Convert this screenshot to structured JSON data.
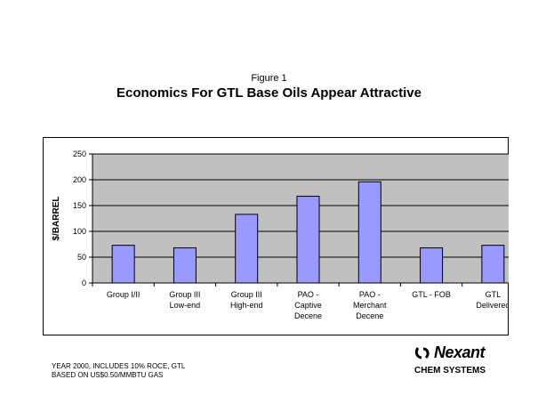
{
  "figure_label": "Figure 1",
  "title": "Economics For GTL Base Oils Appear Attractive",
  "footnote": [
    "YEAR 2000, INCLUDES 10% ROCE, GTL",
    "BASED ON US$0.50/MMBTU GAS"
  ],
  "logo": {
    "word": "Nexant",
    "icon": "nexant-swoosh-icon",
    "sub": "CHEM SYSTEMS"
  },
  "colors": {
    "bar": "#9999ff",
    "plot_bg": "#c0c0c0"
  },
  "chart_data": {
    "type": "bar",
    "categories": [
      [
        "Group I/II"
      ],
      [
        "Group III",
        "Low-end"
      ],
      [
        "Group III",
        "High-end"
      ],
      [
        "PAO -",
        "Captive",
        "Decene"
      ],
      [
        "PAO -",
        "Merchant",
        "Decene"
      ],
      [
        "GTL - FOB"
      ],
      [
        "GTL",
        "Delivered"
      ]
    ],
    "values": [
      73,
      68,
      133,
      168,
      196,
      68,
      73
    ],
    "ylabel": "$/BARREL",
    "xlabel": "",
    "ylim": [
      0,
      250
    ],
    "yticks": [
      0,
      50,
      100,
      150,
      200,
      250
    ],
    "grid": true,
    "legend": "none"
  }
}
